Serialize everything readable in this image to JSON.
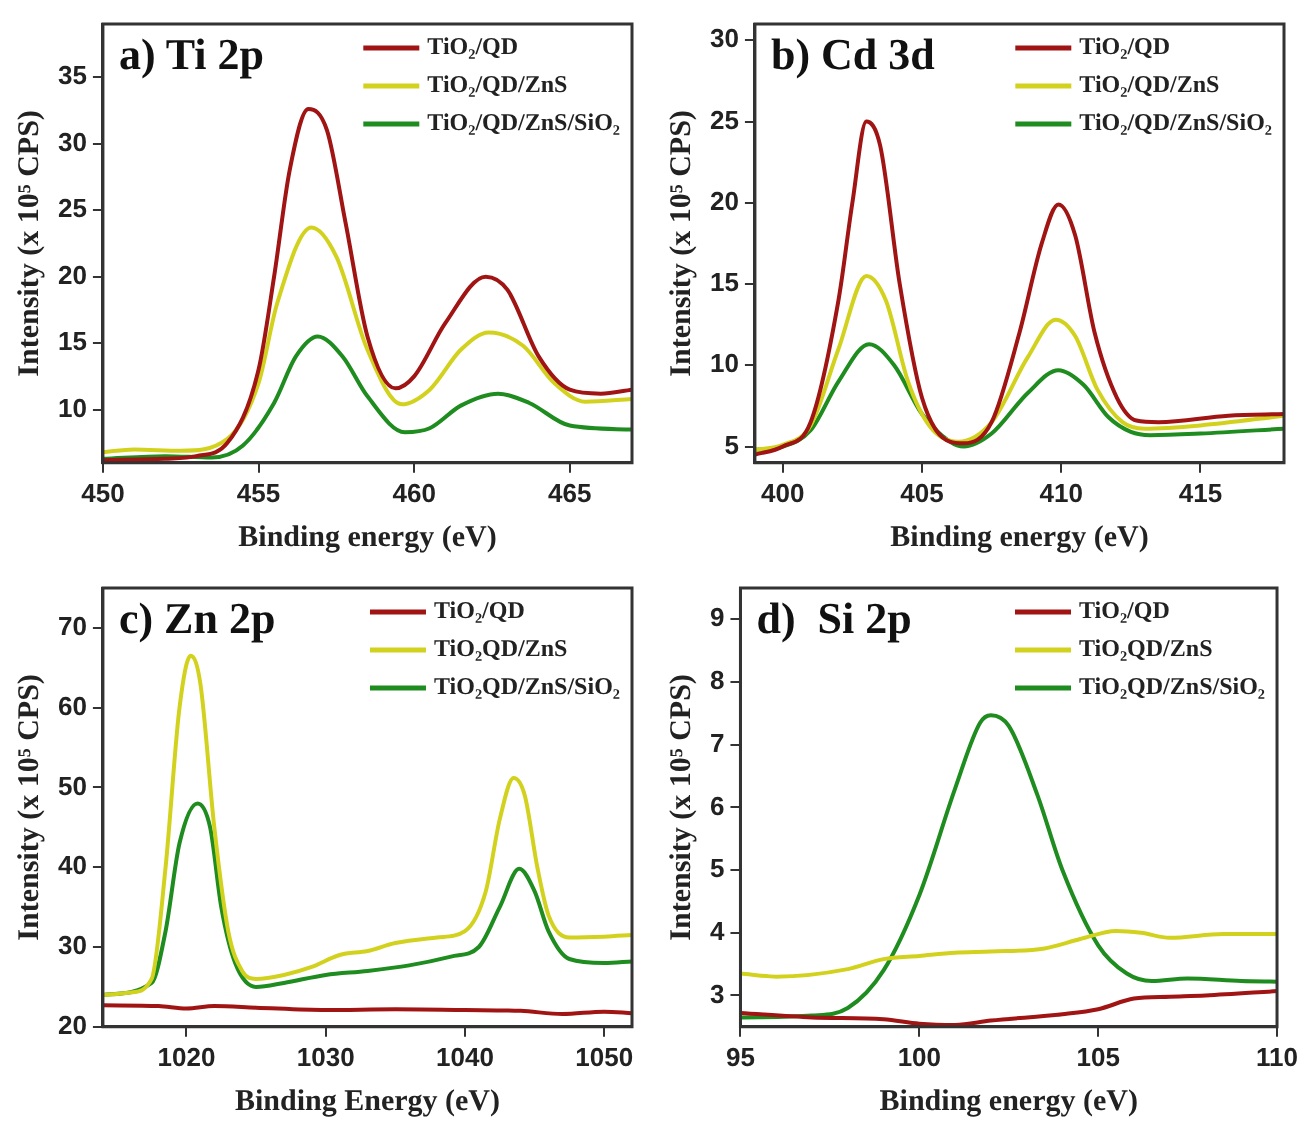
{
  "chart_data": [
    {
      "type": "line",
      "title": "a) Ti 2p",
      "xlabel": "Binding energy (eV)",
      "ylabel": "Intensity (x 10⁵ CPS)",
      "xlim": [
        450,
        467
      ],
      "xticks": [
        450,
        455,
        460,
        465
      ],
      "ylim": [
        6,
        39
      ],
      "yticks": [
        10,
        15,
        20,
        25,
        30,
        35
      ],
      "grid": false,
      "legend": "top right",
      "marker": "none",
      "series": [
        {
          "name": "TiO₂/QD",
          "color": "#a01414",
          "x": [
            450,
            452,
            453,
            454,
            455,
            455.5,
            456,
            456.6,
            457.2,
            457.8,
            458.5,
            459.4,
            460,
            461,
            462.3,
            463,
            464,
            465,
            466,
            467
          ],
          "values": [
            6.2,
            6.3,
            6.5,
            7.5,
            13,
            20,
            28,
            32.6,
            31,
            24,
            15.5,
            11.6,
            12.5,
            16.5,
            20,
            19,
            14,
            11.5,
            11.2,
            11.5
          ]
        },
        {
          "name": "TiO₂/QD/ZnS",
          "color": "#d2d21e",
          "x": [
            450,
            451,
            452.5,
            454,
            455,
            455.6,
            456.7,
            457.5,
            458.5,
            459.6,
            460.5,
            461.5,
            462.4,
            463.5,
            464.5,
            465.5,
            467
          ],
          "values": [
            6.8,
            7,
            6.9,
            7.8,
            12,
            18,
            23.7,
            21.5,
            14.5,
            10.4,
            11.5,
            14.5,
            15.8,
            14.8,
            12,
            10.6,
            10.8
          ]
        },
        {
          "name": "TiO₂/QD/ZnS/SiO₂",
          "color": "#1e8c1e",
          "x": [
            450,
            452,
            453.5,
            454.5,
            455.5,
            456.2,
            456.9,
            457.7,
            458.5,
            459.7,
            460.5,
            461.5,
            462.7,
            463.7,
            465,
            467
          ],
          "values": [
            6.3,
            6.5,
            6.4,
            7.3,
            10.5,
            14,
            15.5,
            14,
            11,
            8.3,
            8.6,
            10.3,
            11.2,
            10.5,
            8.8,
            8.5
          ]
        }
      ]
    },
    {
      "type": "line",
      "title": "b) Cd 3d",
      "xlabel": "Binding energy (eV)",
      "ylabel": "Intensity (x 10⁵ CPS)",
      "xlim": [
        399,
        418
      ],
      "xticks": [
        400,
        405,
        410,
        415
      ],
      "ylim": [
        4,
        31
      ],
      "yticks": [
        5,
        10,
        15,
        20,
        25,
        30
      ],
      "grid": false,
      "legend": "top right",
      "marker": "none",
      "series": [
        {
          "name": "TiO₂/QD",
          "color": "#a01414",
          "x": [
            399,
            400,
            401,
            402,
            402.5,
            403,
            403.5,
            404.2,
            405,
            406,
            406.5,
            407.5,
            408.5,
            409.3,
            409.9,
            410.5,
            411.2,
            412,
            412.7,
            413.5,
            416,
            418
          ],
          "values": [
            4.5,
            5,
            6.5,
            14,
            20,
            25,
            23.5,
            15,
            8,
            5.3,
            5.2,
            6.5,
            12,
            17.5,
            19.9,
            18,
            12,
            8,
            6.6,
            6.5,
            6.9,
            7
          ]
        },
        {
          "name": "TiO₂/QD/ZnS",
          "color": "#d2d21e",
          "x": [
            399,
            400,
            401,
            402,
            403,
            403.7,
            404.5,
            405.3,
            406.3,
            407.5,
            408.8,
            409.8,
            410.5,
            411.3,
            412.2,
            413,
            415,
            418
          ],
          "values": [
            4.8,
            5.1,
            6.3,
            11,
            15.5,
            14,
            9,
            6.2,
            5.3,
            6.5,
            10.5,
            12.8,
            11.8,
            8.5,
            6.5,
            6.1,
            6.3,
            6.9
          ]
        },
        {
          "name": "TiO₂/QD/ZnS/SiO₂",
          "color": "#1e8c1e",
          "x": [
            399,
            400,
            401,
            402,
            403.1,
            404,
            405,
            406,
            406.5,
            407.5,
            408.8,
            409.9,
            410.8,
            411.7,
            412.5,
            413.2,
            415,
            418
          ],
          "values": [
            4.8,
            5,
            6,
            9,
            11.3,
            10,
            7,
            5.3,
            5,
            5.8,
            8.3,
            9.7,
            8.8,
            6.8,
            5.9,
            5.7,
            5.8,
            6.1
          ]
        }
      ]
    },
    {
      "type": "line",
      "title": "c) Zn 2p",
      "xlabel": "Binding Energy (eV)",
      "ylabel": "Intensity (x 10⁵ CPS)",
      "xlim": [
        1014,
        1052
      ],
      "xticks": [
        1020,
        1030,
        1040,
        1050
      ],
      "ylim": [
        20,
        75
      ],
      "yticks": [
        20,
        30,
        40,
        50,
        60,
        70
      ],
      "grid": false,
      "legend": "top right",
      "marker": "none",
      "series": [
        {
          "name": "TiO₂/QD",
          "color": "#a01414",
          "x": [
            1014,
            1018,
            1020,
            1022,
            1025,
            1030,
            1035,
            1040,
            1044,
            1047,
            1050,
            1052
          ],
          "values": [
            22.7,
            22.6,
            22.3,
            22.6,
            22.4,
            22.1,
            22.2,
            22.1,
            22,
            21.6,
            21.9,
            21.7
          ]
        },
        {
          "name": "TiO₂QD/ZnS",
          "color": "#d2d21e",
          "x": [
            1014,
            1016,
            1017.5,
            1018.5,
            1019.5,
            1020.3,
            1021,
            1022,
            1023,
            1024,
            1025,
            1027,
            1029,
            1031,
            1033,
            1035,
            1038,
            1040,
            1041.5,
            1042.5,
            1043.5,
            1044.3,
            1045.2,
            1046,
            1047.5,
            1050,
            1052
          ],
          "values": [
            24,
            24.3,
            26,
            40,
            60,
            66.5,
            63,
            45,
            32,
            27,
            26,
            26.5,
            27.5,
            29,
            29.5,
            30.5,
            31.2,
            32,
            37,
            46,
            51.2,
            49,
            40,
            34,
            31.2,
            31.3,
            31.5
          ]
        },
        {
          "name": "TiO₂QD/ZnS/SiO₂",
          "color": "#1e8c1e",
          "x": [
            1014,
            1017.5,
            1018.5,
            1019.5,
            1020.8,
            1021.7,
            1022.5,
            1023.5,
            1025,
            1027,
            1030,
            1033,
            1036,
            1039,
            1041,
            1042.5,
            1043.9,
            1045,
            1046,
            1047.5,
            1050,
            1052
          ],
          "values": [
            24,
            25.5,
            32,
            43,
            48,
            45,
            35,
            28,
            25,
            25.5,
            26.5,
            27,
            27.7,
            28.8,
            30,
            35,
            39.8,
            37,
            32,
            28.5,
            28,
            28.2
          ]
        }
      ]
    },
    {
      "type": "line",
      "title": "d)  Si 2p",
      "xlabel": "Binding energy (eV)",
      "ylabel": "Intensity (x 10⁵ CPS)",
      "xlim": [
        95,
        110
      ],
      "xticks": [
        95,
        100,
        105,
        110
      ],
      "ylim": [
        2.5,
        9.5
      ],
      "yticks": [
        3,
        4,
        5,
        6,
        7,
        8,
        9
      ],
      "grid": false,
      "legend": "top right",
      "marker": "none",
      "series": [
        {
          "name": "TiO₂/QD",
          "color": "#a01414",
          "x": [
            95,
            97,
            99,
            100,
            101,
            102,
            104,
            105,
            106,
            107,
            108,
            110
          ],
          "values": [
            2.72,
            2.65,
            2.62,
            2.55,
            2.53,
            2.6,
            2.7,
            2.78,
            2.95,
            2.98,
            3,
            3.07
          ]
        },
        {
          "name": "TiO₂QD/ZnS",
          "color": "#d2d21e",
          "x": [
            95,
            96,
            98,
            99,
            100,
            101,
            102,
            103.5,
            104.5,
            105.5,
            106.2,
            107,
            108.5,
            110
          ],
          "values": [
            3.35,
            3.3,
            3.42,
            3.58,
            3.63,
            3.68,
            3.7,
            3.75,
            3.9,
            4.03,
            4,
            3.92,
            3.98,
            3.98
          ]
        },
        {
          "name": "TiO₂QD/ZnS/SiO₂",
          "color": "#1e8c1e",
          "x": [
            95,
            97,
            98,
            99,
            100,
            101,
            101.7,
            102,
            102.5,
            103.3,
            104,
            105,
            105.8,
            106.5,
            107.5,
            109,
            110
          ],
          "values": [
            2.65,
            2.68,
            2.8,
            3.4,
            4.6,
            6.3,
            7.35,
            7.47,
            7.3,
            6.2,
            5,
            3.8,
            3.35,
            3.23,
            3.27,
            3.23,
            3.22
          ]
        }
      ]
    }
  ]
}
